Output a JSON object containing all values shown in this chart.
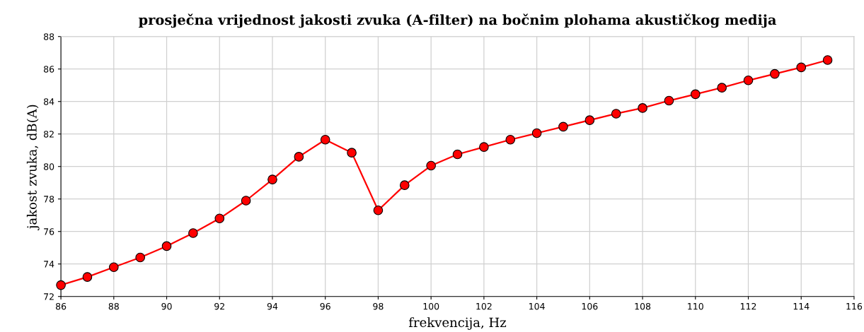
{
  "chart_data": {
    "type": "line",
    "title": "prosječna vrijednost jakosti zvuka (A-filter) na bočnim plohama akustičkog medija",
    "xlabel": "frekvencija, Hz",
    "ylabel": "jakost zvuka, dB(A)",
    "x": [
      86,
      87,
      88,
      89,
      90,
      91,
      92,
      93,
      94,
      95,
      96,
      97,
      98,
      99,
      100,
      101,
      102,
      103,
      104,
      105,
      106,
      107,
      108,
      109,
      110,
      111,
      112,
      113,
      114,
      115
    ],
    "series": [
      {
        "color": "#ff0000",
        "values": [
          72.7,
          73.2,
          73.8,
          74.4,
          75.1,
          75.9,
          76.8,
          77.9,
          79.2,
          80.6,
          81.65,
          80.85,
          77.3,
          78.85,
          80.05,
          80.75,
          81.2,
          81.65,
          82.05,
          82.45,
          82.85,
          83.25,
          83.6,
          84.05,
          84.45,
          84.85,
          85.3,
          85.7,
          86.1,
          86.55
        ]
      }
    ],
    "xlim": [
      86,
      116
    ],
    "xticks": [
      86,
      88,
      90,
      92,
      94,
      96,
      98,
      100,
      102,
      104,
      106,
      108,
      110,
      112,
      114,
      116
    ],
    "ylim": [
      72,
      88
    ],
    "yticks": [
      72,
      74,
      76,
      78,
      80,
      82,
      84,
      86,
      88
    ],
    "grid": true,
    "marker": "circle",
    "line_style": "solid"
  }
}
